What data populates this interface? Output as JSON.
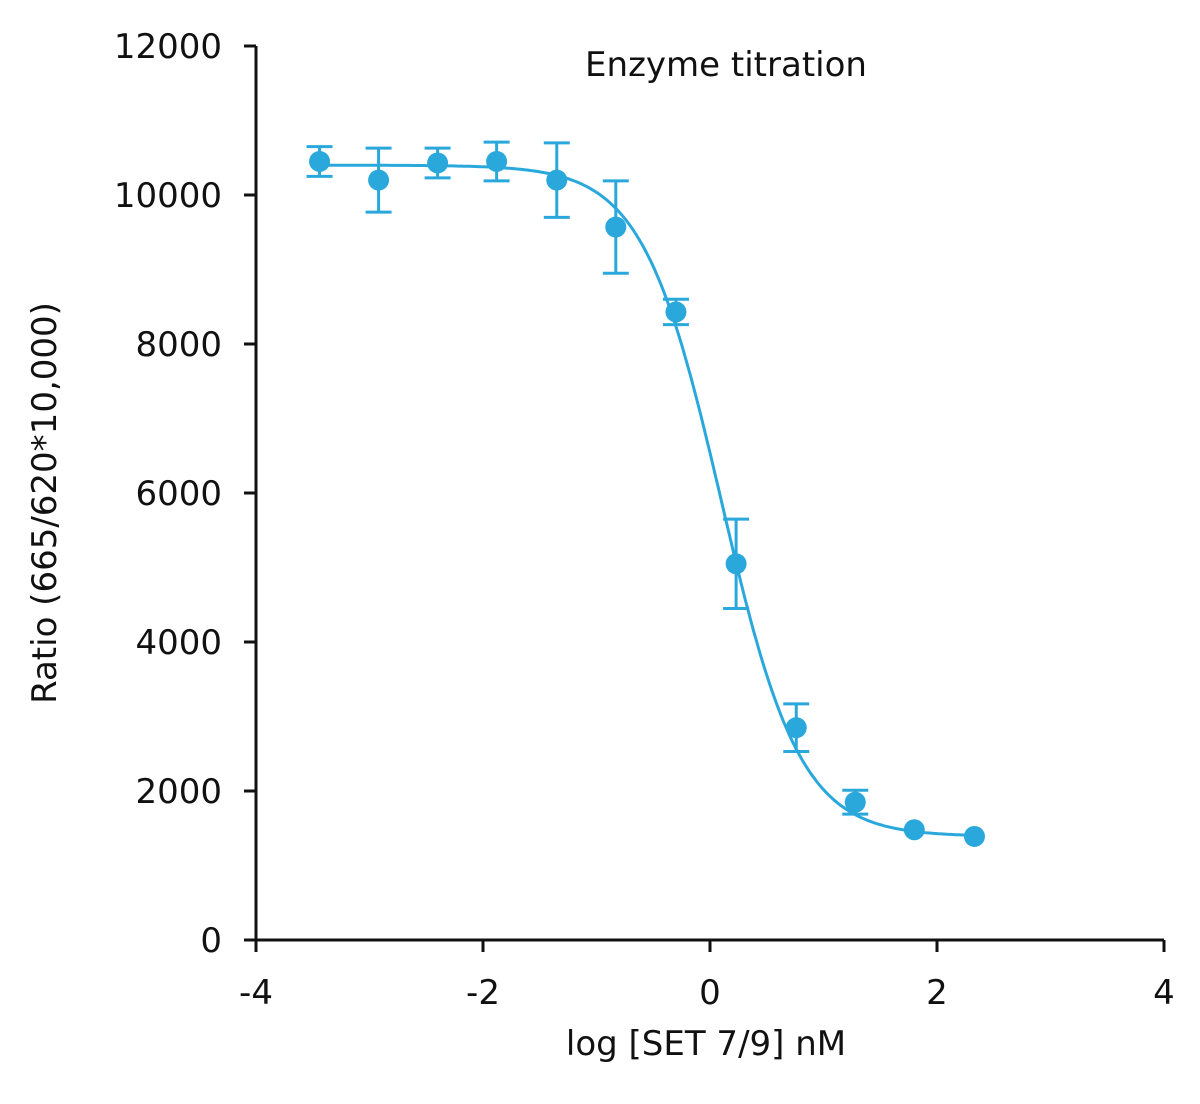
{
  "chart_data": {
    "type": "scatter",
    "title": "Enzyme titration",
    "xlabel": "log [SET 7/9] nM",
    "ylabel": "Ratio (665/620*10,000)",
    "xlim": [
      -4,
      4
    ],
    "ylim": [
      0,
      12000
    ],
    "xticks": [
      -4,
      -2,
      0,
      2,
      4
    ],
    "yticks": [
      0,
      2000,
      4000,
      6000,
      8000,
      10000,
      12000
    ],
    "grid": false,
    "legend": "none",
    "color": "#2aa8dc",
    "series": [
      {
        "x": [
          -3.44,
          -2.92,
          -2.4,
          -1.88,
          -1.35,
          -0.83,
          -0.3,
          0.23,
          0.76,
          1.28,
          1.8,
          2.33
        ],
        "y": [
          10450,
          10200,
          10430,
          10450,
          10200,
          9570,
          8430,
          5050,
          2850,
          1850,
          1480,
          1390
        ],
        "error": [
          200,
          430,
          200,
          260,
          500,
          620,
          170,
          600,
          320,
          160,
          0,
          0
        ]
      }
    ],
    "fit_curve": {
      "type": "four-parameter logistic",
      "top": 10400,
      "bottom": 1390,
      "log_ic50": 0.1,
      "hill": 1.25,
      "x_range": [
        -3.44,
        2.33
      ]
    }
  }
}
